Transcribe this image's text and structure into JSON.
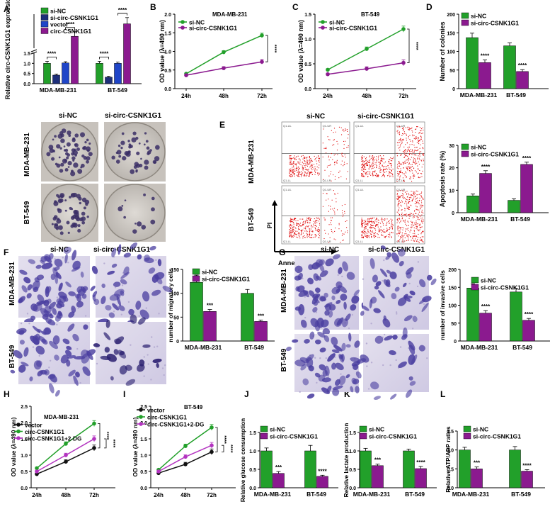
{
  "colors": {
    "green": "#22a02a",
    "purple": "#8b1a8f",
    "navy": "#1e2f7a",
    "blue": "#1f45c8",
    "black": "#111111",
    "magenta": "#b333c0"
  },
  "chart_data": [
    {
      "id": "A",
      "type": "bar",
      "ylabel": "Relative circ-CSNK1G1 expression",
      "ylim": [
        0,
        10
      ],
      "yticks": [
        "0.0",
        "0.5",
        "1.0",
        "1.5"
      ],
      "categories": [
        "MDA-MB-231",
        "BT-549"
      ],
      "series": [
        {
          "name": "si-NC",
          "color": "green",
          "values": [
            1.0,
            1.0
          ],
          "err": [
            0.1,
            0.1
          ]
        },
        {
          "name": "si-circ-CSNK1G1",
          "color": "navy",
          "values": [
            0.42,
            0.32
          ],
          "err": [
            0.05,
            0.04
          ]
        },
        {
          "name": "vector",
          "color": "blue",
          "values": [
            1.02,
            1.0
          ],
          "err": [
            0.06,
            0.06
          ]
        },
        {
          "name": "circ-CSNK1G1",
          "color": "purple",
          "values": [
            6.1,
            8.3
          ],
          "err": [
            0.8,
            1.1
          ]
        }
      ],
      "sig": [
        {
          "label": "****",
          "a": 0,
          "b": 1,
          "cat": 0
        },
        {
          "label": "****",
          "a": 2,
          "b": 3,
          "cat": 0
        },
        {
          "label": "****",
          "a": 0,
          "b": 1,
          "cat": 1
        },
        {
          "label": "****",
          "a": 2,
          "b": 3,
          "cat": 1
        }
      ]
    },
    {
      "id": "B",
      "type": "line",
      "title": "MDA-MB-231",
      "ylabel": "OD value (λ=490 nm)",
      "x": [
        "24h",
        "48h",
        "72h"
      ],
      "ylim": [
        0,
        2
      ],
      "series": [
        {
          "name": "si-NC",
          "color": "green",
          "values": [
            0.4,
            0.98,
            1.43
          ]
        },
        {
          "name": "si-circ-CSNK1G1",
          "color": "purple",
          "values": [
            0.36,
            0.55,
            0.72
          ]
        }
      ],
      "sig": [
        "****"
      ]
    },
    {
      "id": "C",
      "type": "line",
      "title": "BT-549",
      "ylabel": "OD value (λ=490 nm)",
      "x": [
        "24h",
        "48h",
        "72h"
      ],
      "ylim": [
        0,
        1.5
      ],
      "series": [
        {
          "name": "si-NC",
          "color": "green",
          "values": [
            0.38,
            0.8,
            1.2
          ]
        },
        {
          "name": "si-circ-CSNK1G1",
          "color": "purple",
          "values": [
            0.29,
            0.4,
            0.52
          ]
        }
      ],
      "sig": [
        "****"
      ]
    },
    {
      "id": "D",
      "type": "bar",
      "ylabel": "Number of colonies",
      "ylim": [
        0,
        200
      ],
      "categories": [
        "MDA-MB-231",
        "BT-549"
      ],
      "series": [
        {
          "name": "si-NC",
          "color": "green",
          "values": [
            137,
            115
          ],
          "err": [
            12,
            8
          ]
        },
        {
          "name": "si-circ-CSNK1G1",
          "color": "purple",
          "values": [
            70,
            46
          ],
          "err": [
            7,
            5
          ]
        }
      ],
      "sig": [
        "****",
        "****"
      ]
    },
    {
      "id": "E",
      "type": "bar",
      "ylabel": "Apoptosis rate (%)",
      "ylim": [
        0,
        30
      ],
      "categories": [
        "MDA-MB-231",
        "BT-549"
      ],
      "series": [
        {
          "name": "si-NC",
          "color": "green",
          "values": [
            7.5,
            5.5
          ],
          "err": [
            0.8,
            0.7
          ]
        },
        {
          "name": "si-circ-CSNK1G1",
          "color": "purple",
          "values": [
            17.5,
            21.5
          ],
          "err": [
            1.2,
            1.0
          ]
        }
      ],
      "sig": [
        "****",
        "****"
      ]
    },
    {
      "id": "F",
      "type": "bar",
      "ylabel": "number of migratory cells",
      "ylim": [
        0,
        150
      ],
      "categories": [
        "MDA-MB-231",
        "BT-549"
      ],
      "series": [
        {
          "name": "si-NC",
          "color": "green",
          "values": [
            123,
            100
          ],
          "err": [
            15,
            8
          ]
        },
        {
          "name": "si-circ-CSNK1G1",
          "color": "purple",
          "values": [
            62,
            41
          ],
          "err": [
            4,
            3
          ]
        }
      ],
      "sig": [
        "***",
        "***"
      ]
    },
    {
      "id": "G",
      "type": "bar",
      "ylabel": "number of invasive cells",
      "ylim": [
        0,
        200
      ],
      "categories": [
        "MDA-MB-231",
        "BT-549"
      ],
      "series": [
        {
          "name": "si-NC",
          "color": "green",
          "values": [
            148,
            137
          ],
          "err": [
            12,
            10
          ]
        },
        {
          "name": "si-circ-CSNK1G1",
          "color": "purple",
          "values": [
            78,
            58
          ],
          "err": [
            7,
            5
          ]
        }
      ],
      "sig": [
        "****",
        "****"
      ]
    },
    {
      "id": "H",
      "type": "line",
      "title": "MDA-MB-231",
      "ylabel": "OD value (λ=490 nm)",
      "x": [
        "24h",
        "48h",
        "72h"
      ],
      "ylim": [
        0,
        2.5
      ],
      "series": [
        {
          "name": "vector",
          "color": "black",
          "values": [
            0.42,
            0.8,
            1.22
          ]
        },
        {
          "name": "circ-CSNK1G1",
          "color": "green",
          "values": [
            0.6,
            1.35,
            1.97
          ]
        },
        {
          "name": "circ-CSNK1G1+2-DG",
          "color": "magenta",
          "values": [
            0.5,
            1.0,
            1.5
          ]
        }
      ],
      "sig": [
        "****",
        "****"
      ]
    },
    {
      "id": "I",
      "type": "line",
      "title": "BT-549",
      "ylabel": "OD value (λ=490 nm)",
      "x": [
        "24h",
        "48h",
        "72h"
      ],
      "ylim": [
        0,
        2.5
      ],
      "series": [
        {
          "name": "vector",
          "color": "black",
          "values": [
            0.45,
            0.72,
            1.1
          ]
        },
        {
          "name": "circ-CSNK1G1",
          "color": "green",
          "values": [
            0.55,
            1.28,
            1.85
          ]
        },
        {
          "name": "circ-CSNK1G1+2-DG",
          "color": "magenta",
          "values": [
            0.5,
            0.95,
            1.3
          ]
        }
      ],
      "sig": [
        "****",
        "****"
      ]
    },
    {
      "id": "J",
      "type": "bar",
      "ylabel": "Relative glucose consumption",
      "ylim": [
        0,
        1.5
      ],
      "categories": [
        "MDA-MB-231",
        "BT-549"
      ],
      "series": [
        {
          "name": "si-NC",
          "color": "green",
          "values": [
            1.0,
            1.0
          ],
          "err": [
            0.08,
            0.15
          ]
        },
        {
          "name": "si-circ-CSNK1G1",
          "color": "purple",
          "values": [
            0.39,
            0.31
          ],
          "err": [
            0.05,
            0.03
          ]
        }
      ],
      "sig": [
        "***",
        "****"
      ]
    },
    {
      "id": "K",
      "type": "bar",
      "ylabel": "Relative lactate production",
      "ylim": [
        0,
        1.5
      ],
      "categories": [
        "MDA-MB-231",
        "BT-549"
      ],
      "series": [
        {
          "name": "si-NC",
          "color": "green",
          "values": [
            1.0,
            1.0
          ],
          "err": [
            0.07,
            0.05
          ]
        },
        {
          "name": "si-circ-CSNK1G1",
          "color": "purple",
          "values": [
            0.6,
            0.52
          ],
          "err": [
            0.04,
            0.06
          ]
        }
      ],
      "sig": [
        "***",
        "****"
      ]
    },
    {
      "id": "L",
      "type": "bar",
      "ylabel": "Relative ATP/ADP ratios",
      "ylim": [
        0,
        1.5
      ],
      "categories": [
        "MDA-MB-231",
        "BT-549"
      ],
      "series": [
        {
          "name": "si-NC",
          "color": "green",
          "values": [
            1.0,
            1.0
          ],
          "err": [
            0.07,
            0.09
          ]
        },
        {
          "name": "si-circ-CSNK1G1",
          "color": "purple",
          "values": [
            0.5,
            0.44
          ],
          "err": [
            0.05,
            0.04
          ]
        }
      ],
      "sig": [
        "***",
        "****"
      ]
    }
  ],
  "images": {
    "colony": {
      "col_labels": [
        "si-NC",
        "si-circ-CSNK1G1"
      ],
      "row_labels": [
        "MDA-MB-231",
        "BT-549"
      ]
    },
    "flow": {
      "col_labels": [
        "si-NC",
        "si-circ-CSNK1G1"
      ],
      "row_labels": [
        "MDA-MB-231",
        "BT-549"
      ],
      "x_axis": "Annexin V-FITC",
      "y_axis": "PI",
      "quadrants": [
        "Q1-UL",
        "Q1-UR",
        "Q1-LL",
        "Q1-LR"
      ]
    },
    "migration": {
      "col_labels": [
        "si-NC",
        "si-circ-CSNK1G1"
      ],
      "row_labels": [
        "MDA-MB-231",
        "BT-549"
      ]
    },
    "invasion": {
      "col_labels": [
        "si-NC",
        "si-circ-CSNK1G1"
      ],
      "row_labels": [
        "MDA-MB-231",
        "BT-549"
      ]
    }
  },
  "panel_letters": [
    "A",
    "B",
    "C",
    "D",
    "E",
    "F",
    "G",
    "H",
    "I",
    "J",
    "K",
    "L"
  ]
}
